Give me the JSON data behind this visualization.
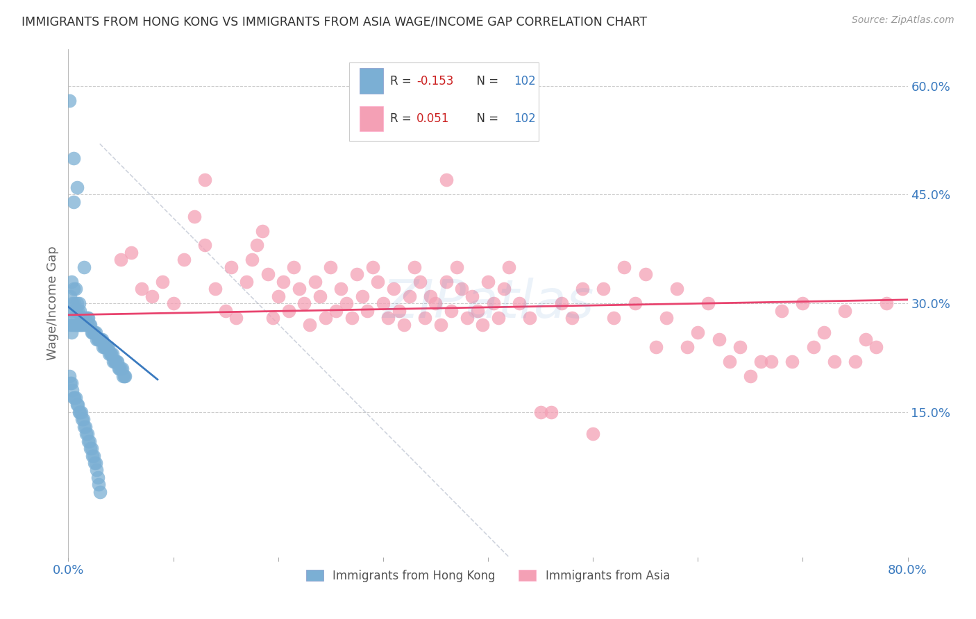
{
  "title": "IMMIGRANTS FROM HONG KONG VS IMMIGRANTS FROM ASIA WAGE/INCOME GAP CORRELATION CHART",
  "source": "Source: ZipAtlas.com",
  "ylabel": "Wage/Income Gap",
  "legend_label1": "Immigrants from Hong Kong",
  "legend_label2": "Immigrants from Asia",
  "r1": -0.153,
  "n1": 102,
  "r2": 0.051,
  "n2": 102,
  "xlim": [
    0.0,
    0.8
  ],
  "ylim": [
    -0.05,
    0.65
  ],
  "yticks_right": [
    0.15,
    0.3,
    0.45,
    0.6
  ],
  "ytick_right_labels": [
    "15.0%",
    "30.0%",
    "45.0%",
    "60.0%"
  ],
  "color_hk": "#7bafd4",
  "color_hk_line": "#3a7abf",
  "color_asia": "#f4a0b5",
  "color_asia_line": "#e8436e",
  "color_diag": "#b0b8c8",
  "background": "#ffffff",
  "hk_x": [
    0.001,
    0.002,
    0.002,
    0.003,
    0.003,
    0.003,
    0.004,
    0.004,
    0.005,
    0.005,
    0.005,
    0.006,
    0.006,
    0.007,
    0.007,
    0.007,
    0.008,
    0.008,
    0.009,
    0.009,
    0.01,
    0.01,
    0.011,
    0.011,
    0.012,
    0.012,
    0.013,
    0.014,
    0.015,
    0.015,
    0.016,
    0.017,
    0.018,
    0.018,
    0.019,
    0.02,
    0.021,
    0.022,
    0.023,
    0.024,
    0.025,
    0.026,
    0.027,
    0.028,
    0.029,
    0.03,
    0.031,
    0.032,
    0.033,
    0.034,
    0.035,
    0.036,
    0.037,
    0.038,
    0.039,
    0.04,
    0.041,
    0.042,
    0.043,
    0.044,
    0.045,
    0.046,
    0.047,
    0.048,
    0.049,
    0.05,
    0.051,
    0.052,
    0.053,
    0.054,
    0.001,
    0.002,
    0.003,
    0.004,
    0.005,
    0.006,
    0.007,
    0.008,
    0.009,
    0.01,
    0.011,
    0.012,
    0.013,
    0.014,
    0.015,
    0.016,
    0.017,
    0.018,
    0.019,
    0.02,
    0.021,
    0.022,
    0.023,
    0.024,
    0.025,
    0.026,
    0.027,
    0.028,
    0.029,
    0.03,
    0.005,
    0.008
  ],
  "hk_y": [
    0.58,
    0.27,
    0.31,
    0.26,
    0.29,
    0.33,
    0.27,
    0.3,
    0.5,
    0.28,
    0.32,
    0.27,
    0.3,
    0.27,
    0.29,
    0.32,
    0.27,
    0.3,
    0.27,
    0.29,
    0.27,
    0.3,
    0.27,
    0.29,
    0.27,
    0.28,
    0.27,
    0.28,
    0.35,
    0.27,
    0.28,
    0.27,
    0.28,
    0.27,
    0.28,
    0.27,
    0.27,
    0.26,
    0.26,
    0.26,
    0.26,
    0.26,
    0.25,
    0.25,
    0.25,
    0.25,
    0.25,
    0.25,
    0.24,
    0.24,
    0.24,
    0.24,
    0.24,
    0.24,
    0.23,
    0.23,
    0.23,
    0.23,
    0.22,
    0.22,
    0.22,
    0.22,
    0.22,
    0.21,
    0.21,
    0.21,
    0.21,
    0.2,
    0.2,
    0.2,
    0.2,
    0.19,
    0.19,
    0.18,
    0.17,
    0.17,
    0.17,
    0.16,
    0.16,
    0.15,
    0.15,
    0.15,
    0.14,
    0.14,
    0.13,
    0.13,
    0.12,
    0.12,
    0.11,
    0.11,
    0.1,
    0.1,
    0.09,
    0.09,
    0.08,
    0.08,
    0.07,
    0.06,
    0.05,
    0.04,
    0.44,
    0.46
  ],
  "asia_x": [
    0.05,
    0.06,
    0.07,
    0.08,
    0.09,
    0.1,
    0.11,
    0.12,
    0.13,
    0.14,
    0.15,
    0.155,
    0.16,
    0.17,
    0.175,
    0.18,
    0.185,
    0.19,
    0.195,
    0.2,
    0.205,
    0.21,
    0.215,
    0.22,
    0.225,
    0.23,
    0.235,
    0.24,
    0.245,
    0.25,
    0.255,
    0.26,
    0.265,
    0.27,
    0.275,
    0.28,
    0.285,
    0.29,
    0.295,
    0.3,
    0.305,
    0.31,
    0.315,
    0.32,
    0.325,
    0.33,
    0.335,
    0.34,
    0.345,
    0.35,
    0.355,
    0.36,
    0.365,
    0.37,
    0.375,
    0.38,
    0.385,
    0.39,
    0.395,
    0.4,
    0.405,
    0.41,
    0.415,
    0.42,
    0.43,
    0.44,
    0.45,
    0.46,
    0.47,
    0.48,
    0.49,
    0.5,
    0.51,
    0.52,
    0.53,
    0.54,
    0.55,
    0.56,
    0.57,
    0.58,
    0.59,
    0.6,
    0.61,
    0.62,
    0.63,
    0.64,
    0.65,
    0.66,
    0.67,
    0.68,
    0.69,
    0.7,
    0.71,
    0.72,
    0.73,
    0.74,
    0.75,
    0.76,
    0.77,
    0.78,
    0.13,
    0.36
  ],
  "asia_y": [
    0.36,
    0.37,
    0.32,
    0.31,
    0.33,
    0.3,
    0.36,
    0.42,
    0.38,
    0.32,
    0.29,
    0.35,
    0.28,
    0.33,
    0.36,
    0.38,
    0.4,
    0.34,
    0.28,
    0.31,
    0.33,
    0.29,
    0.35,
    0.32,
    0.3,
    0.27,
    0.33,
    0.31,
    0.28,
    0.35,
    0.29,
    0.32,
    0.3,
    0.28,
    0.34,
    0.31,
    0.29,
    0.35,
    0.33,
    0.3,
    0.28,
    0.32,
    0.29,
    0.27,
    0.31,
    0.35,
    0.33,
    0.28,
    0.31,
    0.3,
    0.27,
    0.33,
    0.29,
    0.35,
    0.32,
    0.28,
    0.31,
    0.29,
    0.27,
    0.33,
    0.3,
    0.28,
    0.32,
    0.35,
    0.3,
    0.28,
    0.15,
    0.15,
    0.3,
    0.28,
    0.32,
    0.12,
    0.32,
    0.28,
    0.35,
    0.3,
    0.34,
    0.24,
    0.28,
    0.32,
    0.24,
    0.26,
    0.3,
    0.25,
    0.22,
    0.24,
    0.2,
    0.22,
    0.22,
    0.29,
    0.22,
    0.3,
    0.24,
    0.26,
    0.22,
    0.29,
    0.22,
    0.25,
    0.24,
    0.3,
    0.47,
    0.47
  ]
}
